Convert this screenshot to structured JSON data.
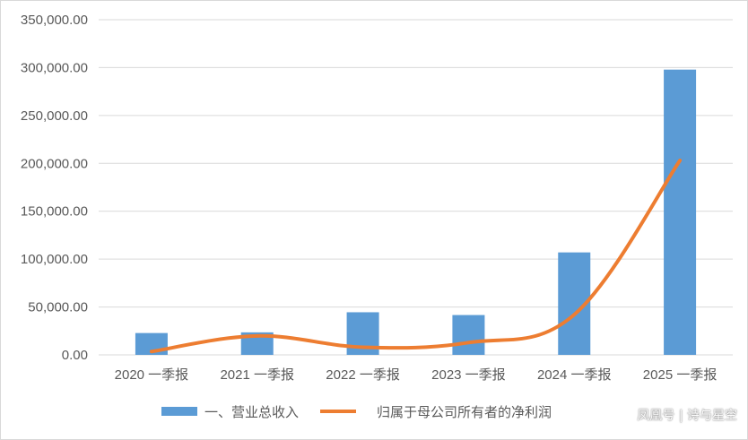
{
  "chart_data": {
    "type": "bar",
    "categories": [
      "2020 一季报",
      "2021 一季报",
      "2022 一季报",
      "2023 一季报",
      "2024 一季报",
      "2025 一季报"
    ],
    "series": [
      {
        "name": "一、营业总收入",
        "kind": "bar",
        "color": "#5b9bd5",
        "values": [
          22800,
          23500,
          44500,
          41600,
          107000,
          297900
        ]
      },
      {
        "name": "归属于母公司所有者的净利润",
        "kind": "line",
        "color": "#ed7d31",
        "values": [
          3500,
          19800,
          8000,
          12800,
          42000,
          203000
        ]
      }
    ],
    "ylim": [
      0,
      350000
    ],
    "yticks": [
      "0.00",
      "50,000.00",
      "100,000.00",
      "150,000.00",
      "200,000.00",
      "250,000.00",
      "300,000.00",
      "350,000.00"
    ],
    "ytick_values": [
      0,
      50000,
      100000,
      150000,
      200000,
      250000,
      300000,
      350000
    ],
    "grid": true,
    "legend_position": "bottom"
  },
  "watermark": "凤凰号 | 诗与星空"
}
